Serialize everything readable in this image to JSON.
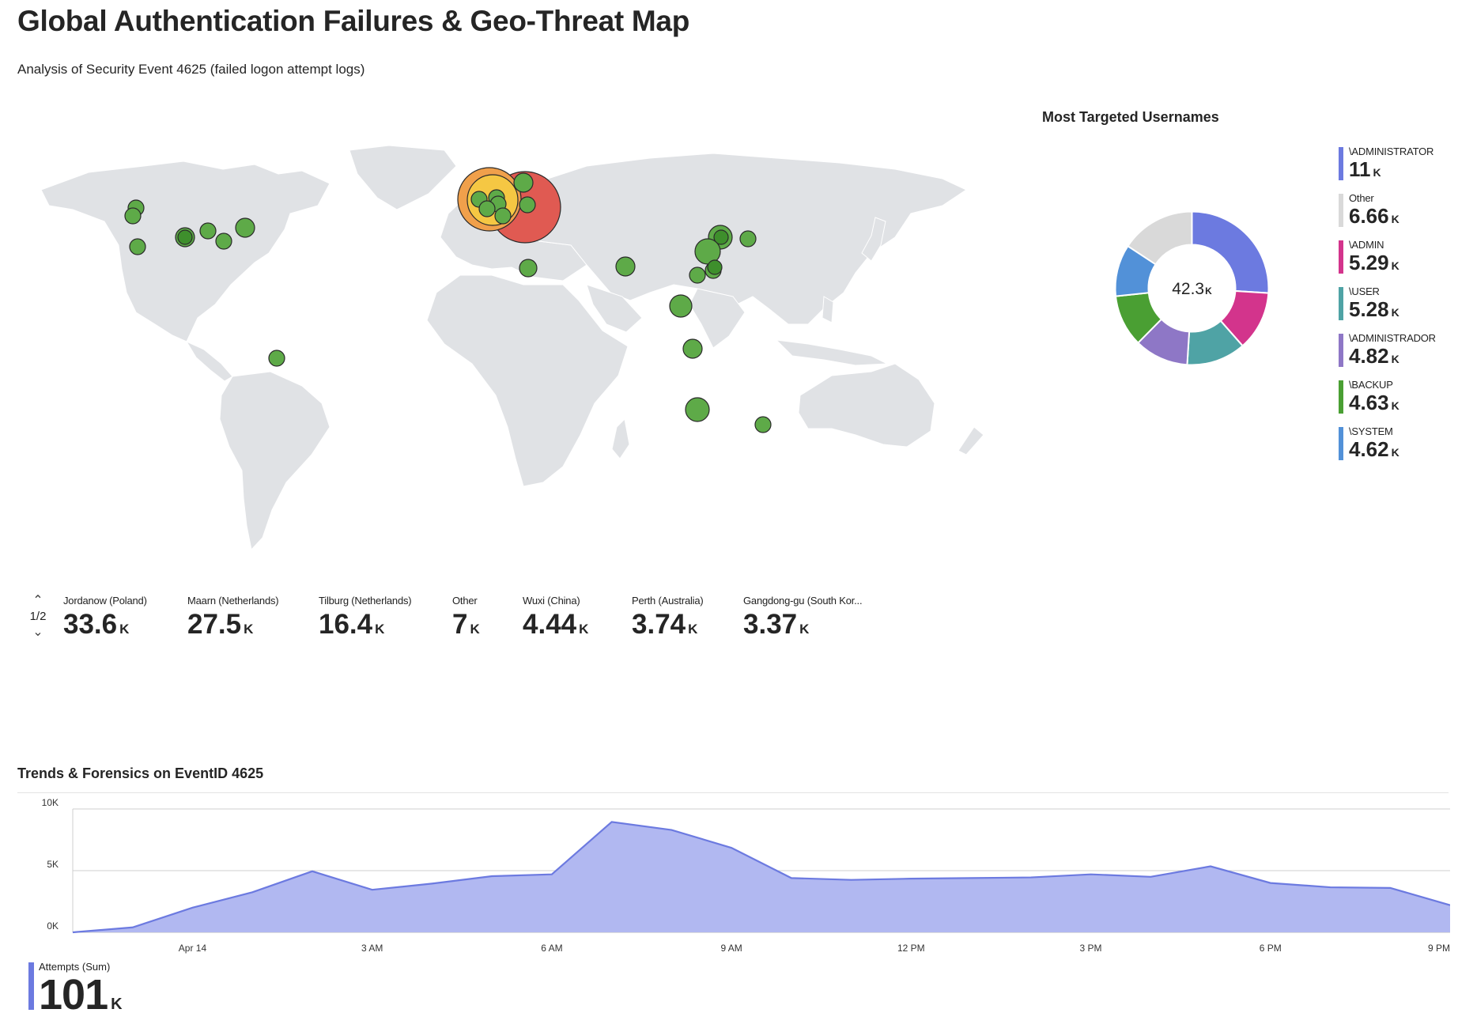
{
  "header": {
    "title": "Global Authentication Failures & Geo-Threat Map",
    "subtitle": "Analysis of Security Event 4625 (failed logon attempt logs)"
  },
  "map": {
    "icon": "world-map",
    "colors": {
      "land": "#e0e2e5",
      "high": "#e05a52",
      "mid": "#f0a04b",
      "low": "#5eaa48"
    },
    "pager": {
      "up_icon": "chevron-up-icon",
      "down_icon": "chevron-down-icon",
      "page": "1/2"
    },
    "locations": [
      {
        "label": "Jordanow (Poland)",
        "value": "33.6",
        "unit": "K"
      },
      {
        "label": "Maarn (Netherlands)",
        "value": "27.5",
        "unit": "K"
      },
      {
        "label": "Tilburg (Netherlands)",
        "value": "16.4",
        "unit": "K"
      },
      {
        "label": "Other",
        "value": "7",
        "unit": "K"
      },
      {
        "label": "Wuxi (China)",
        "value": "4.44",
        "unit": "K"
      },
      {
        "label": "Perth (Australia)",
        "value": "3.74",
        "unit": "K"
      },
      {
        "label": "Gangdong-gu (South Kor...",
        "value": "3.37",
        "unit": "K"
      }
    ]
  },
  "donut": {
    "title": "Most Targeted Usernames",
    "center_value": "42.3",
    "center_unit": "K",
    "items": [
      {
        "label": "\\ADMINISTRATOR",
        "value": "11",
        "unit": "K",
        "amount": 11.0,
        "color": "#6c7ae0"
      },
      {
        "label": "\\ADMIN",
        "value": "5.29",
        "unit": "K",
        "amount": 5.29,
        "color": "#d3348c"
      },
      {
        "label": "\\USER",
        "value": "5.28",
        "unit": "K",
        "amount": 5.28,
        "color": "#4fa3a5"
      },
      {
        "label": "\\ADMINISTRADOR",
        "value": "4.82",
        "unit": "K",
        "amount": 4.82,
        "color": "#8e77c6"
      },
      {
        "label": "\\BACKUP",
        "value": "4.63",
        "unit": "K",
        "amount": 4.63,
        "color": "#4a9f33"
      },
      {
        "label": "\\SYSTEM",
        "value": "4.62",
        "unit": "K",
        "amount": 4.62,
        "color": "#5291d8"
      },
      {
        "label": "Other",
        "value": "6.66",
        "unit": "K",
        "amount": 6.66,
        "color": "#d9d9d9"
      }
    ],
    "legend_order": [
      0,
      6,
      1,
      2,
      3,
      4,
      5
    ]
  },
  "trends": {
    "title": "Trends & Forensics on EventID 4625",
    "summary": {
      "label": "Attempts (Sum)",
      "value": "101",
      "unit": "K"
    }
  },
  "chart_data": {
    "type": "area",
    "x": [
      "Apr 13 10 PM",
      "Apr 13 11 PM",
      "Apr 14 12 AM",
      "Apr 14 1 AM",
      "Apr 14 2 AM",
      "Apr 14 3 AM",
      "Apr 14 4 AM",
      "Apr 14 5 AM",
      "Apr 14 6 AM",
      "Apr 14 7 AM",
      "Apr 14 8 AM",
      "Apr 14 9 AM",
      "Apr 14 10 AM",
      "Apr 14 11 AM",
      "Apr 14 12 PM",
      "Apr 14 1 PM",
      "Apr 14 2 PM",
      "Apr 14 3 PM",
      "Apr 14 4 PM",
      "Apr 14 5 PM",
      "Apr 14 6 PM",
      "Apr 14 7 PM",
      "Apr 14 8 PM",
      "Apr 14 9 PM"
    ],
    "series": [
      {
        "values": [
          0,
          400,
          2000,
          3250,
          4950,
          3450,
          3950,
          4550,
          4700,
          8950,
          8300,
          6850,
          4400,
          4250,
          4350,
          4400,
          4450,
          4700,
          4500,
          5350,
          4000,
          3650,
          3600,
          2200
        ]
      }
    ],
    "xticks": [
      "Apr 14",
      "3 AM",
      "6 AM",
      "9 AM",
      "12 PM",
      "3 PM",
      "6 PM",
      "9 PM"
    ],
    "yticks": [
      "10K",
      "5K",
      "0K"
    ],
    "ylim": [
      0,
      10000
    ],
    "color": "#6c7ae0",
    "fill": "#b1b8f1",
    "grid": true
  }
}
